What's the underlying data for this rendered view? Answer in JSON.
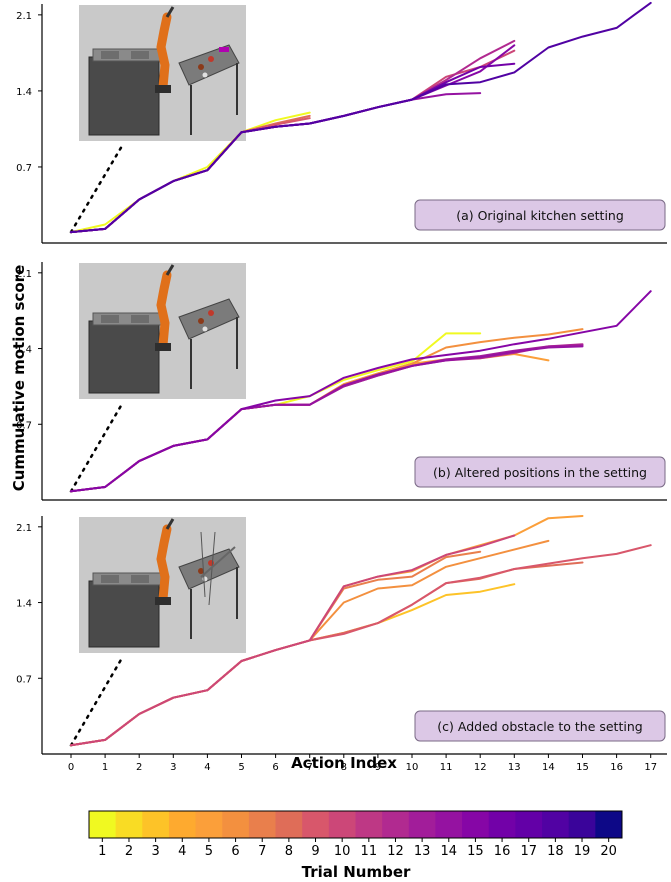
{
  "figure": {
    "ylabel": "Cummulative motion score",
    "xlabel": "Action Index",
    "colorbar_label": "Trial Number"
  },
  "chart_data": [
    {
      "type": "line",
      "panel_label": "(a) Original kitchen setting",
      "scene_image": "robot-kitchen-render",
      "ylim": [
        0,
        2.2
      ],
      "yticks": [
        "0.7",
        "1.4",
        "2.1"
      ],
      "ytick_values": [
        0.7,
        1.4,
        2.1
      ],
      "xlim": [
        0,
        17
      ],
      "series": [
        {
          "trial": 1,
          "x": [
            0,
            1,
            2,
            3,
            4,
            5,
            6,
            7
          ],
          "y": [
            0.1,
            0.17,
            0.4,
            0.57,
            0.7,
            1.02,
            1.13,
            1.2
          ]
        },
        {
          "trial": 3,
          "x": [
            0,
            1,
            2,
            3,
            4,
            5,
            6
          ],
          "y": [
            0.1,
            0.13,
            0.4,
            0.57,
            0.67,
            1.02,
            1.07
          ]
        },
        {
          "trial": 8,
          "x": [
            0,
            1,
            2,
            3,
            4,
            5,
            6,
            7
          ],
          "y": [
            0.1,
            0.13,
            0.4,
            0.57,
            0.67,
            1.02,
            1.1,
            1.17
          ]
        },
        {
          "trial": 9,
          "x": [
            0,
            1,
            2,
            3,
            4,
            5,
            6,
            7
          ],
          "y": [
            0.1,
            0.13,
            0.4,
            0.57,
            0.67,
            1.02,
            1.09,
            1.15
          ]
        },
        {
          "trial": 10,
          "x": [
            0,
            1,
            2,
            3,
            4,
            5,
            6,
            7,
            8,
            9,
            10,
            11,
            12,
            13
          ],
          "y": [
            0.1,
            0.13,
            0.4,
            0.57,
            0.67,
            1.02,
            1.07,
            1.1,
            1.17,
            1.25,
            1.32,
            1.53,
            1.62,
            1.77
          ]
        },
        {
          "trial": 12,
          "x": [
            0,
            1,
            2,
            3,
            4,
            5,
            6,
            7,
            8,
            9,
            10,
            11,
            12,
            13
          ],
          "y": [
            0.1,
            0.13,
            0.4,
            0.57,
            0.67,
            1.02,
            1.07,
            1.1,
            1.17,
            1.25,
            1.32,
            1.5,
            1.7,
            1.86
          ]
        },
        {
          "trial": 14,
          "x": [
            0,
            1,
            2,
            3,
            4,
            5,
            6,
            7,
            8,
            9,
            10,
            11,
            12
          ],
          "y": [
            0.1,
            0.13,
            0.4,
            0.57,
            0.67,
            1.02,
            1.07,
            1.1,
            1.17,
            1.25,
            1.32,
            1.37,
            1.38
          ]
        },
        {
          "trial": 15,
          "x": [
            0,
            1,
            2,
            3,
            4,
            5,
            6,
            7,
            8,
            9,
            10,
            11,
            12,
            13
          ],
          "y": [
            0.1,
            0.13,
            0.4,
            0.57,
            0.67,
            1.02,
            1.07,
            1.1,
            1.17,
            1.25,
            1.32,
            1.45,
            1.58,
            1.82
          ]
        },
        {
          "trial": 16,
          "x": [
            0,
            1,
            2,
            3,
            4,
            5,
            6,
            7,
            8,
            9,
            10,
            11,
            12,
            13
          ],
          "y": [
            0.1,
            0.13,
            0.4,
            0.57,
            0.67,
            1.02,
            1.07,
            1.1,
            1.17,
            1.25,
            1.32,
            1.48,
            1.62,
            1.65
          ]
        },
        {
          "trial": 18,
          "x": [
            0,
            1,
            2,
            3,
            4,
            5,
            6,
            7,
            8,
            9,
            10,
            11,
            12,
            13,
            14,
            15,
            16,
            17
          ],
          "y": [
            0.1,
            0.13,
            0.4,
            0.57,
            0.67,
            1.02,
            1.07,
            1.1,
            1.17,
            1.25,
            1.32,
            1.46,
            1.48,
            1.57,
            1.8,
            1.9,
            1.98,
            2.21
          ]
        }
      ]
    },
    {
      "type": "line",
      "panel_label": "(b) Altered positions in the setting",
      "scene_image": "robot-kitchen-render",
      "ylim": [
        0,
        2.2
      ],
      "yticks": [
        "0.7",
        "1.4",
        "2.1"
      ],
      "ytick_values": [
        0.7,
        1.4,
        2.1
      ],
      "xlim": [
        0,
        17
      ],
      "series": [
        {
          "trial": 1,
          "x": [
            0,
            1,
            2,
            3,
            4,
            5,
            6,
            7,
            8,
            9,
            10,
            11,
            12
          ],
          "y": [
            0.08,
            0.12,
            0.36,
            0.5,
            0.56,
            0.84,
            0.88,
            0.96,
            1.11,
            1.2,
            1.28,
            1.54,
            1.54
          ]
        },
        {
          "trial": 5,
          "x": [
            0,
            1,
            2,
            3,
            4,
            5,
            6,
            7,
            8,
            9,
            10,
            11,
            12,
            13,
            14
          ],
          "y": [
            0.08,
            0.12,
            0.36,
            0.5,
            0.56,
            0.84,
            0.88,
            0.88,
            1.07,
            1.17,
            1.26,
            1.3,
            1.31,
            1.35,
            1.29
          ]
        },
        {
          "trial": 6,
          "x": [
            0,
            1,
            2,
            3,
            4,
            5,
            6,
            7,
            8,
            9,
            10,
            11,
            12,
            13,
            14,
            15
          ],
          "y": [
            0.08,
            0.12,
            0.36,
            0.5,
            0.56,
            0.84,
            0.88,
            0.88,
            1.07,
            1.17,
            1.26,
            1.41,
            1.46,
            1.5,
            1.53,
            1.58
          ]
        },
        {
          "trial": 12,
          "x": [
            0,
            1,
            2,
            3,
            4,
            5,
            6,
            7,
            8,
            9,
            10,
            11,
            12,
            13,
            14,
            15
          ],
          "y": [
            0.08,
            0.12,
            0.36,
            0.5,
            0.56,
            0.84,
            0.88,
            0.88,
            1.05,
            1.15,
            1.24,
            1.29,
            1.31,
            1.36,
            1.42,
            1.44
          ]
        },
        {
          "trial": 13,
          "x": [
            0,
            1,
            2,
            3,
            4,
            5,
            6,
            7,
            8,
            9,
            10,
            11,
            12,
            13,
            14,
            15
          ],
          "y": [
            0.08,
            0.12,
            0.36,
            0.5,
            0.56,
            0.84,
            0.88,
            0.88,
            1.05,
            1.15,
            1.24,
            1.3,
            1.33,
            1.38,
            1.42,
            1.43
          ]
        },
        {
          "trial": 14,
          "x": [
            0,
            1,
            2,
            3,
            4,
            5,
            6,
            7,
            8,
            9,
            10,
            11,
            12,
            13,
            14,
            15
          ],
          "y": [
            0.08,
            0.12,
            0.36,
            0.5,
            0.56,
            0.84,
            0.88,
            0.88,
            1.06,
            1.16,
            1.24,
            1.29,
            1.32,
            1.37,
            1.41,
            1.42
          ]
        },
        {
          "trial": 15,
          "x": [
            0,
            1,
            2,
            3,
            4,
            5,
            6,
            7,
            8,
            9,
            10,
            11,
            12,
            13,
            14,
            15,
            16,
            17
          ],
          "y": [
            0.08,
            0.12,
            0.36,
            0.5,
            0.56,
            0.84,
            0.92,
            0.96,
            1.13,
            1.22,
            1.3,
            1.34,
            1.38,
            1.44,
            1.49,
            1.55,
            1.61,
            1.93
          ]
        }
      ]
    },
    {
      "type": "line",
      "panel_label": "(c) Added obstacle to the setting",
      "scene_image": "robot-kitchen-render",
      "ylim": [
        0,
        2.2
      ],
      "yticks": [
        "0.7",
        "1.4",
        "2.1"
      ],
      "ytick_values": [
        0.7,
        1.4,
        2.1
      ],
      "xlim": [
        0,
        17
      ],
      "series": [
        {
          "trial": 3,
          "x": [
            0,
            1,
            2,
            3,
            4,
            5,
            6,
            7,
            8,
            9,
            10,
            11,
            12,
            13
          ],
          "y": [
            0.08,
            0.13,
            0.37,
            0.52,
            0.59,
            0.86,
            0.96,
            1.05,
            1.12,
            1.21,
            1.33,
            1.47,
            1.5,
            1.57
          ]
        },
        {
          "trial": 5,
          "x": [
            0,
            1,
            2,
            3,
            4,
            5,
            6,
            7,
            8,
            9,
            10,
            11,
            12,
            13,
            14,
            15
          ],
          "y": [
            0.08,
            0.13,
            0.37,
            0.52,
            0.59,
            0.86,
            0.96,
            1.05,
            1.55,
            1.64,
            1.69,
            1.84,
            1.93,
            2.02,
            2.18,
            2.2
          ]
        },
        {
          "trial": 6,
          "x": [
            0,
            1,
            2,
            3,
            4,
            5,
            6,
            7,
            8,
            9,
            10,
            11,
            12,
            14
          ],
          "y": [
            0.08,
            0.13,
            0.37,
            0.52,
            0.59,
            0.86,
            0.96,
            1.05,
            1.4,
            1.53,
            1.56,
            1.73,
            1.81,
            1.97
          ]
        },
        {
          "trial": 7,
          "x": [
            0,
            1,
            2,
            3,
            4,
            5,
            6,
            7,
            8,
            9,
            10,
            11,
            12
          ],
          "y": [
            0.08,
            0.13,
            0.37,
            0.52,
            0.59,
            0.86,
            0.96,
            1.05,
            1.53,
            1.61,
            1.64,
            1.82,
            1.87
          ]
        },
        {
          "trial": 8,
          "x": [
            0,
            1,
            2,
            3,
            4,
            5,
            6,
            7,
            8,
            9,
            10,
            11,
            12,
            13,
            14,
            15
          ],
          "y": [
            0.08,
            0.13,
            0.37,
            0.52,
            0.59,
            0.86,
            0.96,
            1.05,
            1.12,
            1.21,
            1.38,
            1.58,
            1.62,
            1.71,
            1.74,
            1.77
          ]
        },
        {
          "trial": 9,
          "x": [
            0,
            1,
            2,
            3,
            4,
            5,
            6,
            7,
            8,
            9,
            10,
            11,
            12,
            13,
            14,
            15,
            16,
            17
          ],
          "y": [
            0.08,
            0.13,
            0.37,
            0.52,
            0.59,
            0.86,
            0.96,
            1.05,
            1.11,
            1.21,
            1.38,
            1.58,
            1.63,
            1.71,
            1.76,
            1.81,
            1.85,
            1.93
          ]
        },
        {
          "trial": 10,
          "x": [
            0,
            1,
            2,
            3,
            4,
            5,
            6,
            7,
            8,
            9,
            10,
            11,
            12,
            13
          ],
          "y": [
            0.08,
            0.13,
            0.37,
            0.52,
            0.59,
            0.86,
            0.96,
            1.05,
            1.55,
            1.64,
            1.7,
            1.84,
            1.92,
            2.02
          ]
        }
      ]
    }
  ],
  "x_ticks": [
    "0",
    "1",
    "2",
    "3",
    "4",
    "5",
    "6",
    "7",
    "8",
    "9",
    "10",
    "11",
    "12",
    "13",
    "14",
    "15",
    "16",
    "17"
  ],
  "colorbar": {
    "min": 1,
    "max": 20,
    "ticks": [
      "1",
      "2",
      "3",
      "4",
      "5",
      "6",
      "7",
      "8",
      "9",
      "10",
      "11",
      "12",
      "13",
      "14",
      "15",
      "16",
      "17",
      "18",
      "19",
      "20"
    ],
    "colormap": "plasma",
    "colors": [
      "#f0f921",
      "#f9dc24",
      "#fdc328",
      "#feaa2f",
      "#fb9f3a",
      "#f3903f",
      "#e97f4c",
      "#df6d58",
      "#d8576b",
      "#cc4778",
      "#be3885",
      "#b12a90",
      "#a21d9a",
      "#9512a1",
      "#8606a6",
      "#7201a8",
      "#6300a7",
      "#5102a3",
      "#3a049a",
      "#0d0887"
    ]
  },
  "dotted_line_color": "#000000"
}
